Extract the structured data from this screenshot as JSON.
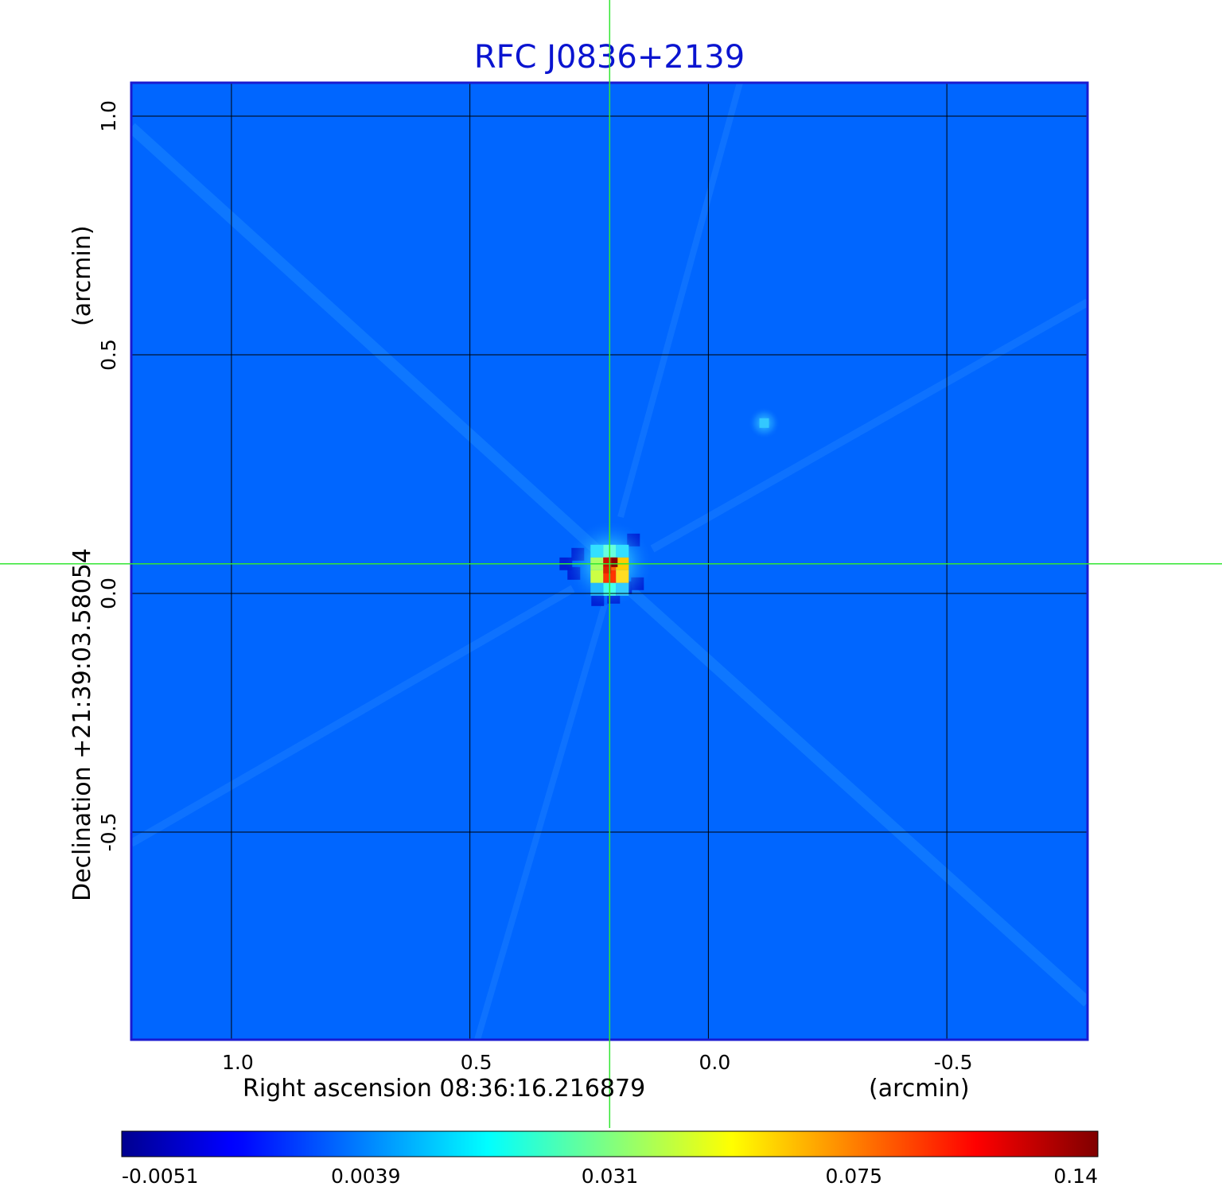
{
  "chart_data": {
    "type": "heatmap",
    "title": "RFC J0836+2139",
    "colormap": "jet",
    "xaxis": {
      "label_main": "Right ascension  08:36:16.216879",
      "label_unit": "(arcmin)",
      "ticks": [
        {
          "value": 1.0,
          "label": "1.0"
        },
        {
          "value": 0.5,
          "label": "0.5"
        },
        {
          "value": 0.0,
          "label": "0.0"
        },
        {
          "value": -0.5,
          "label": "-0.5"
        }
      ],
      "range": [
        1.21,
        -0.795
      ],
      "inverted": true
    },
    "yaxis": {
      "label_main": "Declination  +21:39:03.58054",
      "label_unit": "(arcmin)",
      "ticks": [
        {
          "value": 1.0,
          "label": "1.0"
        },
        {
          "value": 0.5,
          "label": "0.5"
        },
        {
          "value": 0.0,
          "label": "0.0"
        },
        {
          "value": -0.5,
          "label": "-0.5"
        }
      ],
      "range": [
        -0.935,
        1.07
      ]
    },
    "grid": true,
    "crosshair": {
      "x": 0.207,
      "y": 0.062,
      "color": "#33e633"
    },
    "sources": [
      {
        "x": 0.207,
        "y": 0.062,
        "peak": 0.14,
        "kind": "main"
      },
      {
        "x": -0.117,
        "y": 0.357,
        "peak": 0.0035,
        "kind": "secondary"
      }
    ],
    "colorbar": {
      "orientation": "horizontal",
      "position": "bottom",
      "ticks": [
        "-0.0051",
        "0.0039",
        "0.031",
        "0.075",
        "0.14"
      ]
    },
    "colors": {
      "frame": "#1a1ad0",
      "background": "#0066ff",
      "grid": "#000000",
      "crosshair": "#33e633",
      "title": "#0a14d0"
    }
  }
}
